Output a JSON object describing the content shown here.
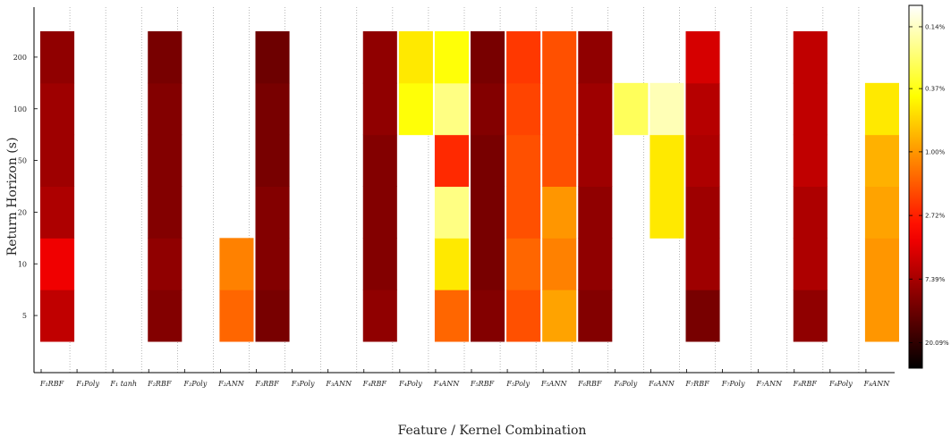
{
  "chart_data": {
    "type": "heatmap",
    "title": "",
    "xlabel": "Feature / Kernel Combination",
    "ylabel": "Return Horizon (s)",
    "x_categories": [
      "F₁RBF",
      "F₁Poly",
      "F₁ tanh",
      "F₂RBF",
      "F₂Poly",
      "F₂ANN",
      "F₃RBF",
      "F₃Poly",
      "F₃ANN",
      "F₄RBF",
      "F₄Poly",
      "F₄ANN",
      "F₅RBF",
      "F₅Poly",
      "F₅ANN",
      "F₆RBF",
      "F₆Poly",
      "F₆ANN",
      "F₇RBF",
      "F₇Poly",
      "F₇ANN",
      "F₈RBF",
      "F₈Poly",
      "F₈ANN"
    ],
    "y_categories": [
      "5",
      "10",
      "20",
      "50",
      "100",
      "200"
    ],
    "colorbar": {
      "scale": "log",
      "colormap": "hot",
      "ticks": [
        "0.14%",
        "0.37%",
        "1.00%",
        "2.72%",
        "7.39%",
        "20.09%"
      ]
    },
    "grid": "vertical dotted",
    "cells": [
      {
        "x": "F₁RBF",
        "values": [
          6.0,
          4.0,
          7.0,
          8.0,
          8.0,
          9.0
        ]
      },
      {
        "x": "F₂RBF",
        "values": [
          10.0,
          9.0,
          10.0,
          10.0,
          10.0,
          11.0
        ]
      },
      {
        "x": "F₂ANN",
        "values": [
          1.5,
          1.2,
          null,
          null,
          null,
          null
        ]
      },
      {
        "x": "F₃RBF",
        "values": [
          11.0,
          10.0,
          10.0,
          11.0,
          11.0,
          12.0
        ]
      },
      {
        "x": "F₄RBF",
        "values": [
          9.0,
          10.0,
          10.0,
          10.0,
          9.0,
          9.0
        ]
      },
      {
        "x": "F₄Poly",
        "values": [
          null,
          null,
          null,
          null,
          0.4,
          0.5
        ]
      },
      {
        "x": "F₄ANN",
        "values": [
          1.5,
          0.5,
          0.2,
          2.5,
          0.2,
          0.4
        ]
      },
      {
        "x": "F₅RBF",
        "values": [
          10.0,
          11.0,
          11.0,
          11.0,
          10.0,
          11.0
        ]
      },
      {
        "x": "F₅Poly",
        "values": [
          1.8,
          1.5,
          1.8,
          1.8,
          2.0,
          2.2
        ]
      },
      {
        "x": "F₅ANN",
        "values": [
          0.9,
          1.2,
          1.0,
          1.8,
          1.8,
          1.8
        ]
      },
      {
        "x": "F₆RBF",
        "values": [
          10.0,
          9.0,
          9.0,
          8.0,
          8.0,
          9.0
        ]
      },
      {
        "x": "F₆Poly",
        "values": [
          null,
          null,
          null,
          null,
          0.25,
          null
        ]
      },
      {
        "x": "F₆ANN",
        "values": [
          null,
          null,
          0.5,
          0.5,
          0.15,
          null
        ]
      },
      {
        "x": "F₇RBF",
        "values": [
          11.0,
          8.0,
          8.0,
          7.0,
          6.5,
          5.0
        ]
      },
      {
        "x": "F₈RBF",
        "values": [
          9.0,
          7.0,
          7.0,
          6.0,
          6.0,
          6.0
        ]
      },
      {
        "x": "F₈ANN",
        "values": [
          1.0,
          1.0,
          0.9,
          0.8,
          0.5,
          null
        ]
      }
    ]
  }
}
